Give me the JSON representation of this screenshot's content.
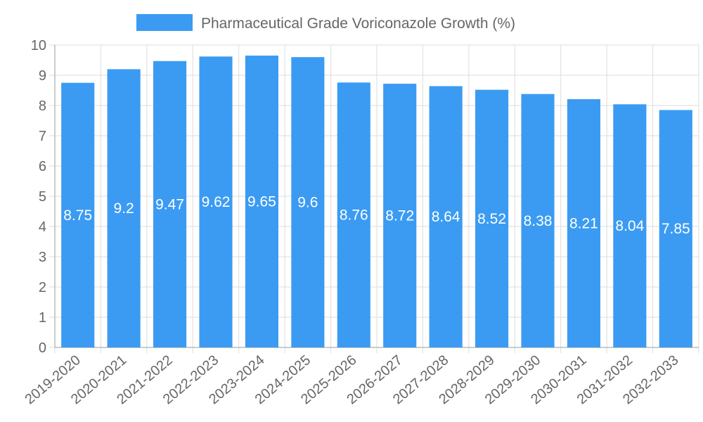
{
  "chart_data": {
    "type": "bar",
    "title": "",
    "xlabel": "",
    "ylabel": "",
    "categories": [
      "2019-2020",
      "2020-2021",
      "2021-2022",
      "2022-2023",
      "2023-2024",
      "2024-2025",
      "2025-2026",
      "2026-2027",
      "2027-2028",
      "2028-2029",
      "2029-2030",
      "2030-2031",
      "2031-2032",
      "2032-2033"
    ],
    "series": [
      {
        "name": "Pharmaceutical Grade Voriconazole Growth (%)",
        "color": "#3b9bf2",
        "values": [
          8.75,
          9.2,
          9.47,
          9.62,
          9.65,
          9.6,
          8.76,
          8.72,
          8.64,
          8.52,
          8.38,
          8.21,
          8.04,
          7.85
        ],
        "labels": [
          "8.75",
          "9.2",
          "9.47",
          "9.62",
          "9.65",
          "9.6",
          "8.76",
          "8.72",
          "8.64",
          "8.52",
          "8.38",
          "8.21",
          "8.04",
          "7.85"
        ]
      }
    ],
    "ylim": [
      0,
      10
    ],
    "yticks": [
      "0",
      "1",
      "2",
      "3",
      "4",
      "5",
      "6",
      "7",
      "8",
      "9",
      "10"
    ],
    "grid": true,
    "legend": "top-center"
  }
}
